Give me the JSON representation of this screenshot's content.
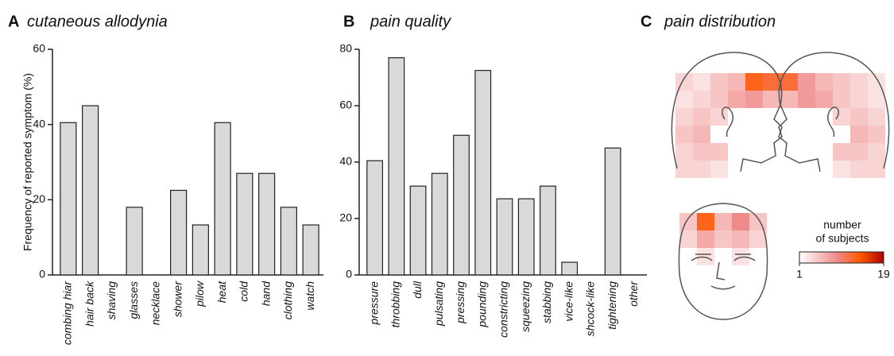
{
  "chart_data": [
    {
      "type": "bar",
      "label": "A",
      "title": "cutaneous allodynia",
      "ylabel": "Frequency of reported symptom  (%)",
      "categories": [
        "combing hiar",
        "hair back",
        "shaving",
        "glasses",
        "necklace",
        "shower",
        "pilow",
        "heat",
        "cold",
        "hand",
        "clothing",
        "watch"
      ],
      "values": [
        40.5,
        45,
        0,
        18,
        0,
        22.5,
        13.3,
        40.5,
        27,
        27,
        18,
        13.3
      ],
      "color": "#d9d9d9",
      "ylim": [
        0,
        60
      ],
      "yticks": [
        0,
        20,
        40,
        60
      ]
    },
    {
      "type": "bar",
      "label": "B",
      "title": "pain quality",
      "categories": [
        "pressure",
        "throbbing",
        "dull",
        "pulsating",
        "pressing",
        "pounding",
        "constricting",
        "squeezing",
        "stabbing",
        "vice-like",
        "shcock-like",
        "tightening",
        "other"
      ],
      "values": [
        40.5,
        77,
        31.5,
        36,
        49.5,
        72.5,
        27,
        27,
        31.5,
        4.5,
        0,
        45,
        0
      ],
      "color": "#d9d9d9",
      "ylim": [
        0,
        80
      ],
      "yticks": [
        0,
        20,
        40,
        60,
        80
      ]
    },
    {
      "type": "heatmap",
      "label": "C",
      "title": "pain distribution",
      "colorbar_title": [
        "number",
        "of subjects"
      ],
      "colorbar_lim": [
        1,
        19
      ],
      "colorbar_ticks": [
        1,
        19
      ],
      "views": {
        "left_profile": [
          [
            4,
            3,
            5,
            6,
            13,
            12
          ],
          [
            3,
            4,
            5,
            7,
            8,
            6
          ],
          [
            4,
            5,
            4,
            null,
            null,
            null
          ],
          [
            5,
            6,
            null,
            null,
            null,
            null
          ],
          [
            4,
            5,
            5,
            null,
            null,
            null
          ],
          [
            4,
            4,
            3,
            null,
            null,
            null
          ]
        ],
        "right_profile": [
          [
            12,
            8,
            6,
            5,
            4,
            3
          ],
          [
            6,
            8,
            7,
            5,
            4,
            3
          ],
          [
            null,
            null,
            null,
            4,
            5,
            4
          ],
          [
            null,
            null,
            null,
            null,
            6,
            5
          ],
          [
            null,
            null,
            null,
            5,
            5,
            4
          ],
          [
            null,
            null,
            null,
            3,
            4,
            4
          ]
        ],
        "front": [
          [
            5,
            13,
            6,
            9,
            5
          ],
          [
            4,
            7,
            5,
            6,
            4
          ],
          [
            null,
            3,
            null,
            3,
            null
          ]
        ]
      }
    }
  ]
}
